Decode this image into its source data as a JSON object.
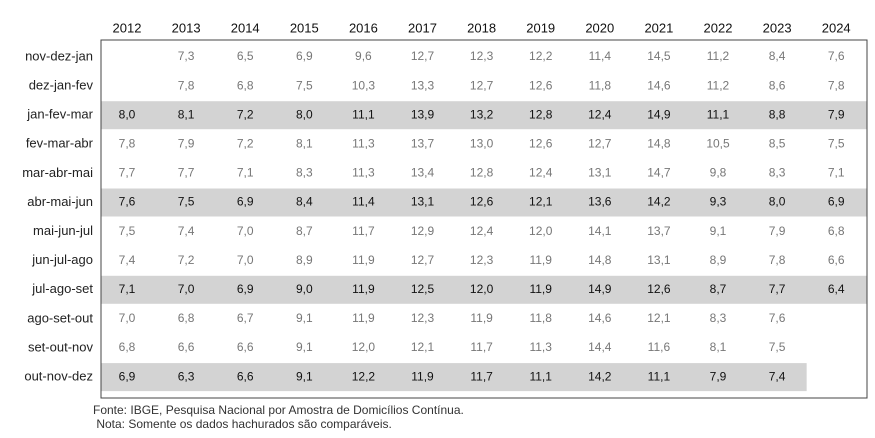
{
  "chart_data": {
    "type": "table",
    "years": [
      "2012",
      "2013",
      "2014",
      "2015",
      "2016",
      "2017",
      "2018",
      "2019",
      "2020",
      "2021",
      "2022",
      "2023",
      "2024"
    ],
    "rows": [
      {
        "period": "nov-dez-jan",
        "highlighted": false,
        "values": [
          "",
          "7,3",
          "6,5",
          "6,9",
          "9,6",
          "12,7",
          "12,3",
          "12,2",
          "11,4",
          "14,5",
          "11,2",
          "8,4",
          "7,6"
        ]
      },
      {
        "period": "dez-jan-fev",
        "highlighted": false,
        "values": [
          "",
          "7,8",
          "6,8",
          "7,5",
          "10,3",
          "13,3",
          "12,7",
          "12,6",
          "11,8",
          "14,6",
          "11,2",
          "8,6",
          "7,8"
        ]
      },
      {
        "period": "jan-fev-mar",
        "highlighted": true,
        "values": [
          "8,0",
          "8,1",
          "7,2",
          "8,0",
          "11,1",
          "13,9",
          "13,2",
          "12,8",
          "12,4",
          "14,9",
          "11,1",
          "8,8",
          "7,9"
        ]
      },
      {
        "period": "fev-mar-abr",
        "highlighted": false,
        "values": [
          "7,8",
          "7,9",
          "7,2",
          "8,1",
          "11,3",
          "13,7",
          "13,0",
          "12,6",
          "12,7",
          "14,8",
          "10,5",
          "8,5",
          "7,5"
        ]
      },
      {
        "period": "mar-abr-mai",
        "highlighted": false,
        "values": [
          "7,7",
          "7,7",
          "7,1",
          "8,3",
          "11,3",
          "13,4",
          "12,8",
          "12,4",
          "13,1",
          "14,7",
          "9,8",
          "8,3",
          "7,1"
        ]
      },
      {
        "period": "abr-mai-jun",
        "highlighted": true,
        "values": [
          "7,6",
          "7,5",
          "6,9",
          "8,4",
          "11,4",
          "13,1",
          "12,6",
          "12,1",
          "13,6",
          "14,2",
          "9,3",
          "8,0",
          "6,9"
        ]
      },
      {
        "period": "mai-jun-jul",
        "highlighted": false,
        "values": [
          "7,5",
          "7,4",
          "7,0",
          "8,7",
          "11,7",
          "12,9",
          "12,4",
          "12,0",
          "14,1",
          "13,7",
          "9,1",
          "7,9",
          "6,8"
        ]
      },
      {
        "period": "jun-jul-ago",
        "highlighted": false,
        "values": [
          "7,4",
          "7,2",
          "7,0",
          "8,9",
          "11,9",
          "12,7",
          "12,3",
          "11,9",
          "14,8",
          "13,1",
          "8,9",
          "7,8",
          "6,6"
        ]
      },
      {
        "period": "jul-ago-set",
        "highlighted": true,
        "values": [
          "7,1",
          "7,0",
          "6,9",
          "9,0",
          "11,9",
          "12,5",
          "12,0",
          "11,9",
          "14,9",
          "12,6",
          "8,7",
          "7,7",
          "6,4"
        ]
      },
      {
        "period": "ago-set-out",
        "highlighted": false,
        "values": [
          "7,0",
          "6,8",
          "6,7",
          "9,1",
          "11,9",
          "12,3",
          "11,9",
          "11,8",
          "14,6",
          "12,1",
          "8,3",
          "7,6",
          ""
        ]
      },
      {
        "period": "set-out-nov",
        "highlighted": false,
        "values": [
          "6,8",
          "6,6",
          "6,6",
          "9,1",
          "12,0",
          "12,1",
          "11,7",
          "11,3",
          "14,4",
          "11,6",
          "8,1",
          "7,5",
          ""
        ]
      },
      {
        "period": "out-nov-dez",
        "highlighted": true,
        "values": [
          "6,9",
          "6,3",
          "6,6",
          "9,1",
          "12,2",
          "11,9",
          "11,7",
          "11,1",
          "14,2",
          "11,1",
          "7,9",
          "7,4",
          ""
        ]
      }
    ]
  },
  "footer": {
    "source": "Fonte: IBGE, Pesquisa Nacional por Amostra de Domicílios Contínua.",
    "note": " Nota: Somente os dados hachurados são comparáveis."
  },
  "colors": {
    "highlight": "#d3d3d3",
    "text_highlight": "#111111",
    "text_normal": "#777777",
    "label": "#222222",
    "border": "#444444"
  }
}
